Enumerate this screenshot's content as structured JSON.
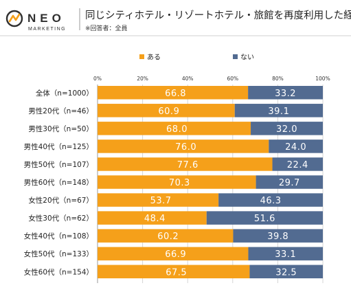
{
  "logo": {
    "brand": "NEO",
    "sub": "MARKETING"
  },
  "chart_data": {
    "type": "bar",
    "orientation": "horizontal",
    "stacked": true,
    "title": "同じシティホテル・リゾートホテル・旅館を再度利用した経験",
    "subtitle": "※回答者：全員",
    "xlim": [
      0,
      100
    ],
    "x_ticks": [
      "0%",
      "20%",
      "40%",
      "60%",
      "80%",
      "100%"
    ],
    "grid": true,
    "legend_position": "top",
    "categories": [
      "全体（n=1000）",
      "男性20代（n=46）",
      "男性30代（n=50）",
      "男性40代（n=125）",
      "男性50代（n=107）",
      "男性60代（n=148）",
      "女性20代（n=67）",
      "女性30代（n=62）",
      "女性40代（n=108）",
      "女性50代（n=133）",
      "女性60代（n=154）"
    ],
    "series": [
      {
        "name": "ある",
        "color": "#f5a01a",
        "values": [
          66.8,
          60.9,
          68.0,
          76.0,
          77.6,
          70.3,
          53.7,
          48.4,
          60.2,
          66.9,
          67.5
        ],
        "labels": [
          "66.8",
          "60.9",
          "68.0",
          "76.0",
          "77.6",
          "70.3",
          "53.7",
          "48.4",
          "60.2",
          "66.9",
          "67.5"
        ]
      },
      {
        "name": "ない",
        "color": "#526b91",
        "values": [
          33.2,
          39.1,
          32.0,
          24.0,
          22.4,
          29.7,
          46.3,
          51.6,
          39.8,
          33.1,
          32.5
        ],
        "labels": [
          "33.2",
          "39.1",
          "32.0",
          "24.0",
          "22.4",
          "29.7",
          "46.3",
          "51.6",
          "39.8",
          "33.1",
          "32.5"
        ]
      }
    ]
  }
}
